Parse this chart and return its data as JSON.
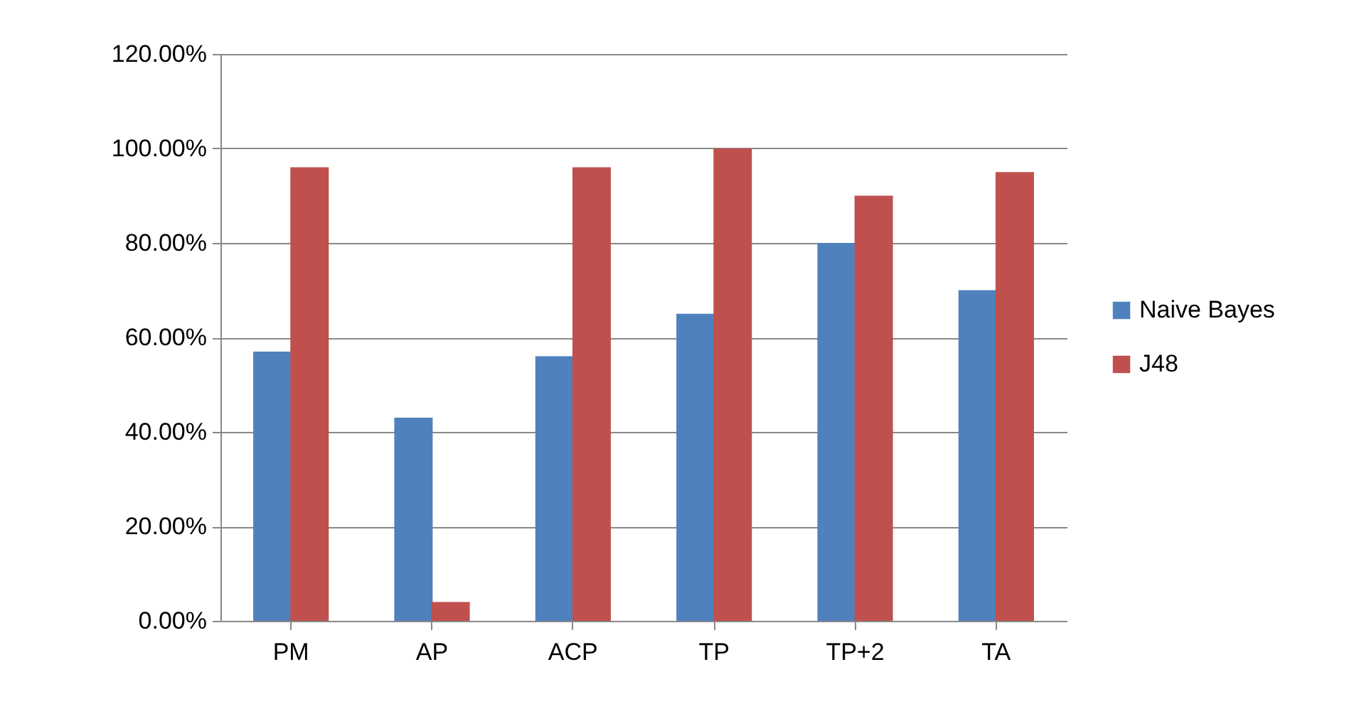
{
  "chart_data": {
    "type": "bar",
    "categories": [
      "PM",
      "AP",
      "ACP",
      "TP",
      "TP+2",
      "TA"
    ],
    "series": [
      {
        "name": "Naive Bayes",
        "color": "#4f81bd",
        "values": [
          57,
          43,
          56,
          65,
          80,
          70
        ]
      },
      {
        "name": "J48",
        "color": "#c0504d",
        "values": [
          96,
          4,
          96,
          100,
          90,
          95
        ]
      }
    ],
    "ylim": [
      0,
      120
    ],
    "yticks": [
      {
        "value": 0,
        "label": "0.00%"
      },
      {
        "value": 20,
        "label": "20.00%"
      },
      {
        "value": 40,
        "label": "40.00%"
      },
      {
        "value": 60,
        "label": "60.00%"
      },
      {
        "value": 80,
        "label": "80.00%"
      },
      {
        "value": 100,
        "label": "100.00%"
      },
      {
        "value": 120,
        "label": "120.00%"
      }
    ],
    "grid": "y",
    "legend": "right"
  }
}
